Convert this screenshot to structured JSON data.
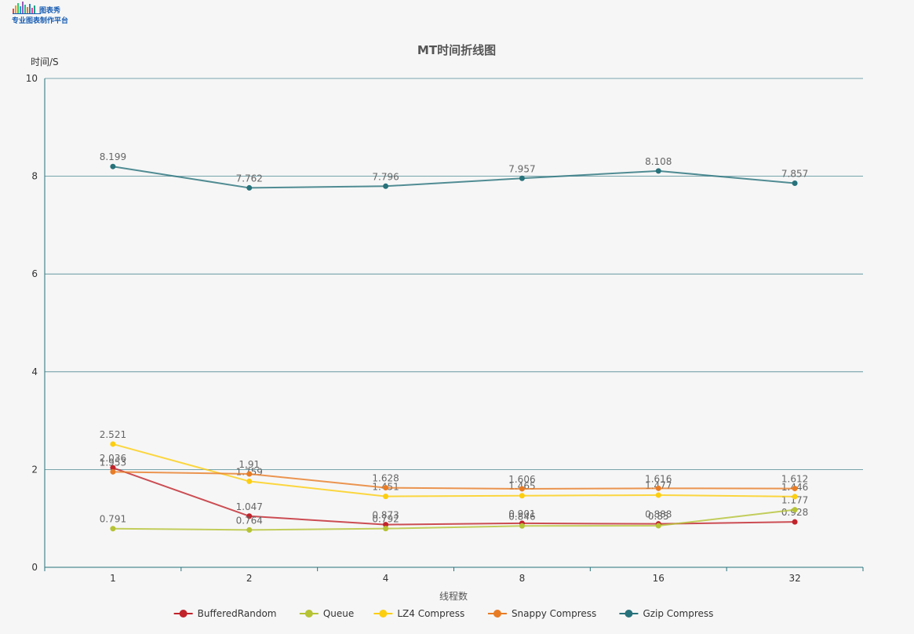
{
  "logo": {
    "line1": "图表秀",
    "line2": "专业图表制作平台"
  },
  "chart_data": {
    "type": "line",
    "title": "MT时间折线图",
    "xlabel": "线程数",
    "ylabel": "时间/S",
    "categories": [
      "1",
      "2",
      "4",
      "8",
      "16",
      "32"
    ],
    "ylim": [
      0,
      10
    ],
    "yticks": [
      "0",
      "2",
      "4",
      "6",
      "8",
      "10"
    ],
    "grid": true,
    "legend_position": "bottom",
    "series": [
      {
        "name": "BufferedRandom",
        "color": "#c1232b",
        "values": [
          2.036,
          1.047,
          0.873,
          0.901,
          0.888,
          0.928
        ]
      },
      {
        "name": "Queue",
        "color": "#b5c334",
        "values": [
          0.791,
          0.764,
          0.792,
          0.846,
          0.85,
          1.177
        ]
      },
      {
        "name": "LZ4 Compress",
        "color": "#fcce10",
        "values": [
          2.521,
          1.759,
          1.451,
          1.465,
          1.477,
          1.446
        ]
      },
      {
        "name": "Snappy Compress",
        "color": "#e87c25",
        "values": [
          1.953,
          1.91,
          1.628,
          1.606,
          1.616,
          1.612
        ]
      },
      {
        "name": "Gzip Compress",
        "color": "#27727b",
        "values": [
          8.199,
          7.762,
          7.796,
          7.957,
          8.108,
          7.857
        ]
      }
    ]
  }
}
